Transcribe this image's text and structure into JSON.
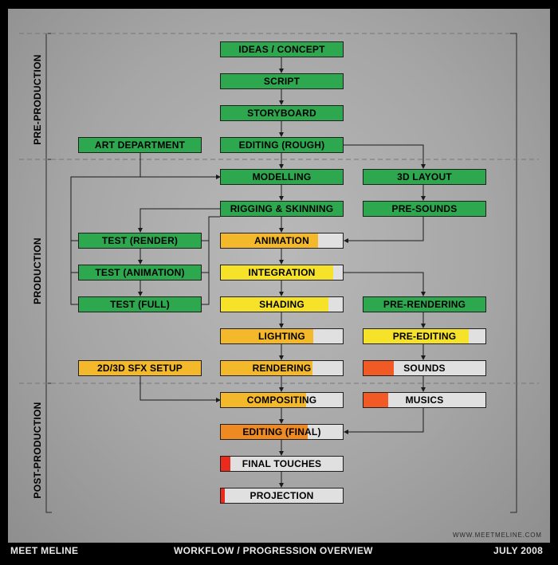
{
  "colors": {
    "done": "#2ea84f",
    "orange_dark": "#ef8a22",
    "orange": "#f4b82b",
    "yellow": "#f5e229",
    "red_orange": "#f25a25",
    "red": "#ea2b1c",
    "empty": "#e0e0e0"
  },
  "phases": {
    "pre_production": "PRE-PRODUCTION",
    "production": "PRODUCTION",
    "post_production": "POST-PRODUCTION"
  },
  "nodes": {
    "ideas": {
      "label": "IDEAS / CONCEPT",
      "progress": 1.0,
      "color": "done"
    },
    "script": {
      "label": "SCRIPT",
      "progress": 1.0,
      "color": "done"
    },
    "storyboard": {
      "label": "STORYBOARD",
      "progress": 1.0,
      "color": "done"
    },
    "editing_rough": {
      "label": "EDITING (ROUGH)",
      "progress": 1.0,
      "color": "done"
    },
    "art_department": {
      "label": "ART DEPARTMENT",
      "progress": 1.0,
      "color": "done"
    },
    "modelling": {
      "label": "MODELLING",
      "progress": 1.0,
      "color": "done"
    },
    "layout_3d": {
      "label": "3D LAYOUT",
      "progress": 1.0,
      "color": "done"
    },
    "rigging": {
      "label": "RIGGING & SKINNING",
      "progress": 1.0,
      "color": "done"
    },
    "pre_sounds": {
      "label": "PRE-SOUNDS",
      "progress": 1.0,
      "color": "done"
    },
    "test_render": {
      "label": "TEST (RENDER)",
      "progress": 1.0,
      "color": "done"
    },
    "test_animation": {
      "label": "TEST (ANIMATION)",
      "progress": 1.0,
      "color": "done"
    },
    "test_full": {
      "label": "TEST (FULL)",
      "progress": 1.0,
      "color": "done"
    },
    "animation": {
      "label": "ANIMATION",
      "progress": 0.8,
      "color": "orange"
    },
    "integration": {
      "label": "INTEGRATION",
      "progress": 0.92,
      "color": "yellow"
    },
    "shading": {
      "label": "SHADING",
      "progress": 0.88,
      "color": "yellow"
    },
    "pre_rendering": {
      "label": "PRE-RENDERING",
      "progress": 1.0,
      "color": "done"
    },
    "lighting": {
      "label": "LIGHTING",
      "progress": 0.76,
      "color": "orange"
    },
    "pre_editing": {
      "label": "PRE-EDITING",
      "progress": 0.86,
      "color": "yellow"
    },
    "sfx_setup": {
      "label": "2D/3D SFX SETUP",
      "progress": 1.0,
      "color": "orange"
    },
    "rendering": {
      "label": "RENDERING",
      "progress": 0.75,
      "color": "orange"
    },
    "sounds": {
      "label": "SOUNDS",
      "progress": 0.25,
      "color": "red_orange"
    },
    "compositing": {
      "label": "COMPOSITING",
      "progress": 0.7,
      "color": "orange"
    },
    "musics": {
      "label": "MUSICS",
      "progress": 0.2,
      "color": "red_orange"
    },
    "editing_final": {
      "label": "EDITING (FINAL)",
      "progress": 0.71,
      "color": "orange_dark"
    },
    "final_touches": {
      "label": "FINAL TOUCHES",
      "progress": 0.08,
      "color": "red"
    },
    "projection": {
      "label": "PROJECTION",
      "progress": 0.03,
      "color": "red"
    }
  },
  "website": "WWW.MEETMELINE.COM",
  "footer": {
    "left": "MEET MELINE",
    "center": "WORKFLOW / PROGRESSION OVERVIEW",
    "right": "JULY 2008"
  }
}
